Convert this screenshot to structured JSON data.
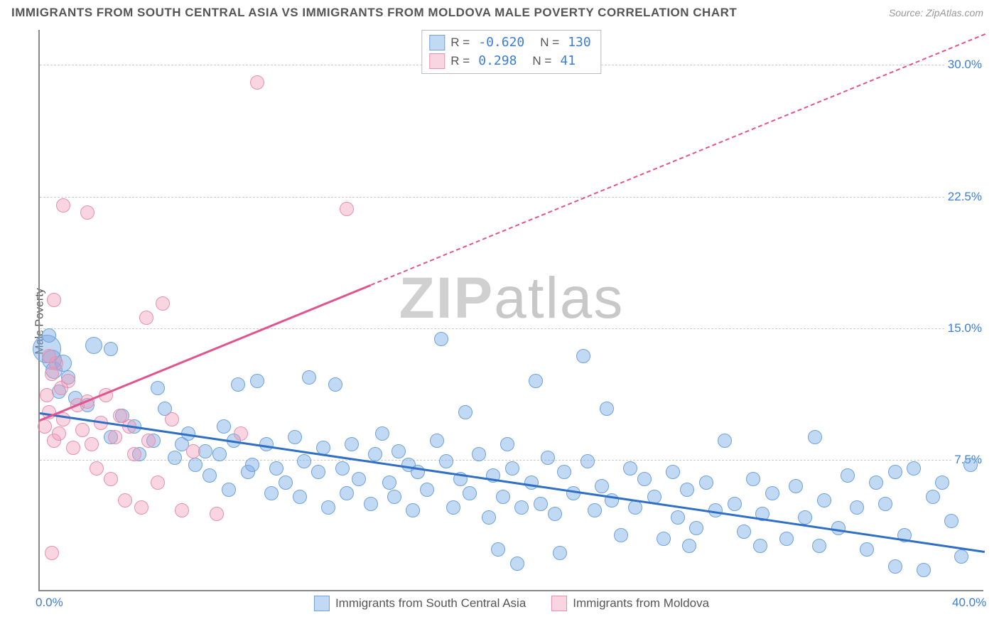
{
  "header": {
    "title": "IMMIGRANTS FROM SOUTH CENTRAL ASIA VS IMMIGRANTS FROM MOLDOVA MALE POVERTY CORRELATION CHART",
    "source": "Source: ZipAtlas.com"
  },
  "watermark": {
    "bold": "ZIP",
    "light": "atlas"
  },
  "chart": {
    "type": "scatter",
    "ylabel": "Male Poverty",
    "xlim": [
      0,
      40
    ],
    "ylim": [
      0,
      32
    ],
    "xticks": [
      {
        "v": 0,
        "l": "0.0%"
      },
      {
        "v": 40,
        "l": "40.0%"
      }
    ],
    "yticks": [
      {
        "v": 7.5,
        "l": "7.5%"
      },
      {
        "v": 15,
        "l": "15.0%"
      },
      {
        "v": 22.5,
        "l": "22.5%"
      },
      {
        "v": 30,
        "l": "30.0%"
      }
    ],
    "grid_color": "#cccccc",
    "background_color": "#ffffff",
    "axis_color": "#888888",
    "tick_label_color": "#3b7dd8",
    "series": [
      {
        "name": "Immigrants from South Central Asia",
        "color_fill": "rgba(120,170,230,0.45)",
        "color_stroke": "#6fa3db",
        "trend_color": "#2f6fc4",
        "R": "-0.620",
        "N": "130",
        "trend": {
          "x1": 0,
          "y1": 10.2,
          "x2": 40,
          "y2": 2.3,
          "dash": false
        },
        "default_r": 10,
        "points": [
          [
            0.3,
            13.8,
            20
          ],
          [
            0.5,
            13.2,
            14
          ],
          [
            0.6,
            12.6,
            12
          ],
          [
            1.0,
            13.0,
            12
          ],
          [
            1.2,
            12.2,
            10
          ],
          [
            0.4,
            14.6,
            10
          ],
          [
            0.8,
            11.4,
            10
          ],
          [
            1.5,
            11.0,
            10
          ],
          [
            2.0,
            10.6,
            10
          ],
          [
            2.3,
            14.0,
            12
          ],
          [
            3.0,
            13.8,
            10
          ],
          [
            3.0,
            8.8,
            10
          ],
          [
            3.5,
            10.0,
            10
          ],
          [
            4.0,
            9.4,
            10
          ],
          [
            4.2,
            7.8,
            10
          ],
          [
            4.8,
            8.6,
            10
          ],
          [
            5.0,
            11.6,
            10
          ],
          [
            5.3,
            10.4,
            10
          ],
          [
            5.7,
            7.6,
            10
          ],
          [
            6.0,
            8.4,
            10
          ],
          [
            6.3,
            9.0,
            10
          ],
          [
            6.6,
            7.2,
            10
          ],
          [
            7.0,
            8.0,
            10
          ],
          [
            7.2,
            6.6,
            10
          ],
          [
            7.6,
            7.8,
            10
          ],
          [
            7.8,
            9.4,
            10
          ],
          [
            8.0,
            5.8,
            10
          ],
          [
            8.2,
            8.6,
            10
          ],
          [
            8.4,
            11.8,
            10
          ],
          [
            8.8,
            6.8,
            10
          ],
          [
            9.0,
            7.2,
            10
          ],
          [
            9.2,
            12.0,
            10
          ],
          [
            9.6,
            8.4,
            10
          ],
          [
            9.8,
            5.6,
            10
          ],
          [
            10.0,
            7.0,
            10
          ],
          [
            10.4,
            6.2,
            10
          ],
          [
            10.8,
            8.8,
            10
          ],
          [
            11.0,
            5.4,
            10
          ],
          [
            11.2,
            7.4,
            10
          ],
          [
            11.4,
            12.2,
            10
          ],
          [
            11.8,
            6.8,
            10
          ],
          [
            12.0,
            8.2,
            10
          ],
          [
            12.2,
            4.8,
            10
          ],
          [
            12.5,
            11.8,
            10
          ],
          [
            12.8,
            7.0,
            10
          ],
          [
            13.0,
            5.6,
            10
          ],
          [
            13.2,
            8.4,
            10
          ],
          [
            13.5,
            6.4,
            10
          ],
          [
            14.0,
            5.0,
            10
          ],
          [
            14.2,
            7.8,
            10
          ],
          [
            14.5,
            9.0,
            10
          ],
          [
            14.8,
            6.2,
            10
          ],
          [
            15.0,
            5.4,
            10
          ],
          [
            15.2,
            8.0,
            10
          ],
          [
            15.6,
            7.2,
            10
          ],
          [
            15.8,
            4.6,
            10
          ],
          [
            16.0,
            6.8,
            10
          ],
          [
            16.4,
            5.8,
            10
          ],
          [
            16.8,
            8.6,
            10
          ],
          [
            17.0,
            14.4,
            10
          ],
          [
            17.2,
            7.4,
            10
          ],
          [
            17.5,
            4.8,
            10
          ],
          [
            17.8,
            6.4,
            10
          ],
          [
            18.0,
            10.2,
            10
          ],
          [
            18.2,
            5.6,
            10
          ],
          [
            18.6,
            7.8,
            10
          ],
          [
            19.0,
            4.2,
            10
          ],
          [
            19.2,
            6.6,
            10
          ],
          [
            19.6,
            5.4,
            10
          ],
          [
            19.8,
            8.4,
            10
          ],
          [
            20.0,
            7.0,
            10
          ],
          [
            20.2,
            1.6,
            10
          ],
          [
            20.4,
            4.8,
            10
          ],
          [
            20.8,
            6.2,
            10
          ],
          [
            21.0,
            12.0,
            10
          ],
          [
            21.2,
            5.0,
            10
          ],
          [
            21.5,
            7.6,
            10
          ],
          [
            21.8,
            4.4,
            10
          ],
          [
            22.0,
            2.2,
            10
          ],
          [
            22.2,
            6.8,
            10
          ],
          [
            22.6,
            5.6,
            10
          ],
          [
            23.0,
            13.4,
            10
          ],
          [
            23.2,
            7.4,
            10
          ],
          [
            23.5,
            4.6,
            10
          ],
          [
            23.8,
            6.0,
            10
          ],
          [
            24.0,
            10.4,
            10
          ],
          [
            24.2,
            5.2,
            10
          ],
          [
            24.6,
            3.2,
            10
          ],
          [
            25.0,
            7.0,
            10
          ],
          [
            25.2,
            4.8,
            10
          ],
          [
            25.6,
            6.4,
            10
          ],
          [
            26.0,
            5.4,
            10
          ],
          [
            26.4,
            3.0,
            10
          ],
          [
            26.8,
            6.8,
            10
          ],
          [
            27.0,
            4.2,
            10
          ],
          [
            27.4,
            5.8,
            10
          ],
          [
            27.8,
            3.6,
            10
          ],
          [
            28.2,
            6.2,
            10
          ],
          [
            28.6,
            4.6,
            10
          ],
          [
            29.0,
            8.6,
            10
          ],
          [
            29.4,
            5.0,
            10
          ],
          [
            29.8,
            3.4,
            10
          ],
          [
            30.2,
            6.4,
            10
          ],
          [
            30.6,
            4.4,
            10
          ],
          [
            31.0,
            5.6,
            10
          ],
          [
            31.6,
            3.0,
            10
          ],
          [
            32.0,
            6.0,
            10
          ],
          [
            32.4,
            4.2,
            10
          ],
          [
            32.8,
            8.8,
            10
          ],
          [
            33.2,
            5.2,
            10
          ],
          [
            33.8,
            3.6,
            10
          ],
          [
            34.2,
            6.6,
            10
          ],
          [
            34.6,
            4.8,
            10
          ],
          [
            35.0,
            2.4,
            10
          ],
          [
            35.4,
            6.2,
            10
          ],
          [
            35.8,
            5.0,
            10
          ],
          [
            36.2,
            6.8,
            10
          ],
          [
            36.6,
            3.2,
            10
          ],
          [
            37.0,
            7.0,
            10
          ],
          [
            37.4,
            1.2,
            10
          ],
          [
            37.8,
            5.4,
            10
          ],
          [
            38.2,
            6.2,
            10
          ],
          [
            38.6,
            4.0,
            10
          ],
          [
            39.0,
            2.0,
            10
          ],
          [
            39.4,
            7.2,
            10
          ],
          [
            36.2,
            1.4,
            10
          ],
          [
            33.0,
            2.6,
            10
          ],
          [
            30.5,
            2.6,
            10
          ],
          [
            27.5,
            2.6,
            10
          ],
          [
            19.4,
            2.4,
            10
          ]
        ]
      },
      {
        "name": "Immigrants from Moldova",
        "color_fill": "rgba(240,150,180,0.40)",
        "color_stroke": "#e88fb0",
        "trend_color": "#e05590",
        "R": "0.298",
        "N": "41",
        "trend": {
          "x1": 0,
          "y1": 9.8,
          "x2": 14,
          "y2": 17.5,
          "dash": false
        },
        "trend_extend": {
          "x1": 14,
          "y1": 17.5,
          "x2": 40,
          "y2": 31.8,
          "dash": true
        },
        "default_r": 10,
        "points": [
          [
            0.2,
            9.4,
            10
          ],
          [
            0.4,
            10.2,
            10
          ],
          [
            0.6,
            8.6,
            10
          ],
          [
            0.8,
            9.0,
            10
          ],
          [
            0.3,
            11.2,
            10
          ],
          [
            0.5,
            12.4,
            10
          ],
          [
            0.7,
            13.0,
            10
          ],
          [
            1.0,
            9.8,
            10
          ],
          [
            1.2,
            12.0,
            10
          ],
          [
            1.4,
            8.2,
            10
          ],
          [
            0.4,
            13.4,
            10
          ],
          [
            0.9,
            11.6,
            10
          ],
          [
            1.6,
            10.6,
            10
          ],
          [
            0.6,
            16.6,
            10
          ],
          [
            1.8,
            9.2,
            10
          ],
          [
            2.0,
            10.8,
            10
          ],
          [
            2.2,
            8.4,
            10
          ],
          [
            1.0,
            22.0,
            10
          ],
          [
            2.0,
            21.6,
            10
          ],
          [
            2.4,
            7.0,
            10
          ],
          [
            2.6,
            9.6,
            10
          ],
          [
            2.8,
            11.2,
            10
          ],
          [
            3.0,
            6.4,
            10
          ],
          [
            3.2,
            8.8,
            10
          ],
          [
            3.4,
            10.0,
            10
          ],
          [
            3.6,
            5.2,
            10
          ],
          [
            3.8,
            9.4,
            10
          ],
          [
            4.0,
            7.8,
            10
          ],
          [
            4.3,
            4.8,
            10
          ],
          [
            4.5,
            15.6,
            10
          ],
          [
            4.6,
            8.6,
            10
          ],
          [
            5.0,
            6.2,
            10
          ],
          [
            5.2,
            16.4,
            10
          ],
          [
            5.6,
            9.8,
            10
          ],
          [
            6.0,
            4.6,
            10
          ],
          [
            6.5,
            8.0,
            10
          ],
          [
            7.5,
            4.4,
            10
          ],
          [
            8.5,
            9.0,
            10
          ],
          [
            9.2,
            29.0,
            10
          ],
          [
            13.0,
            21.8,
            10
          ],
          [
            0.5,
            2.2,
            10
          ]
        ]
      }
    ],
    "bottom_legend": [
      {
        "label": "Immigrants from South Central Asia",
        "fill": "rgba(120,170,230,0.45)",
        "stroke": "#6fa3db"
      },
      {
        "label": "Immigrants from Moldova",
        "fill": "rgba(240,150,180,0.40)",
        "stroke": "#e88fb0"
      }
    ]
  }
}
